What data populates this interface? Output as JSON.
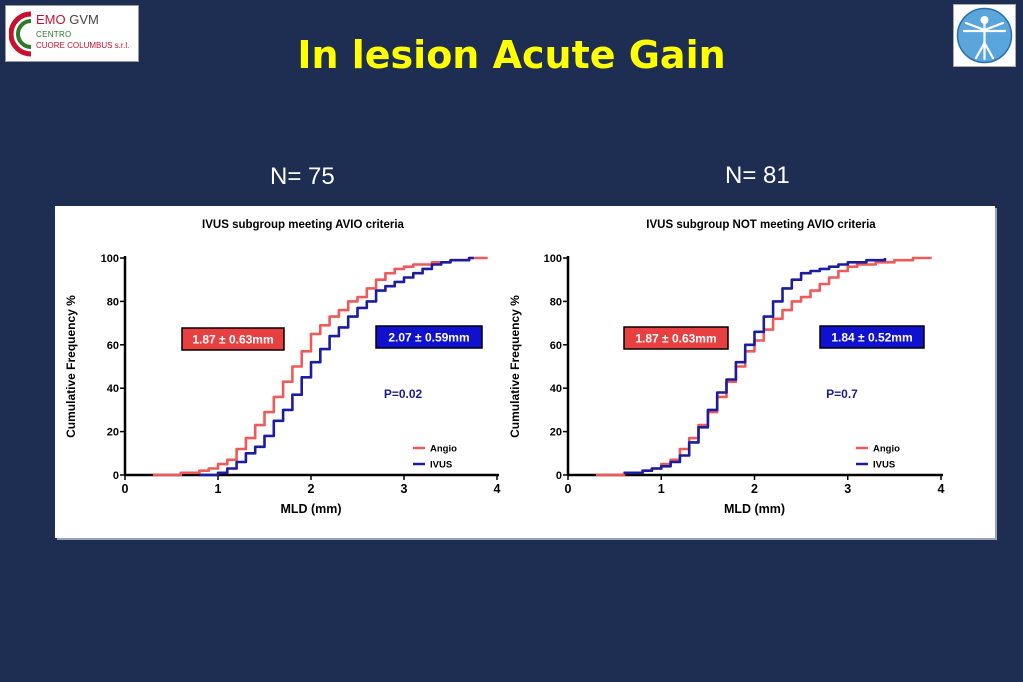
{
  "header": {
    "title": "In lesion Acute Gain",
    "logo_left": {
      "line1_a": "EMO",
      "line1_b": "GVM",
      "line2": "CENTRO",
      "line3": "CUORE COLUMBUS s.r.l."
    }
  },
  "groups": [
    {
      "n_label": "N= 75"
    },
    {
      "n_label": "N= 81"
    }
  ],
  "colors": {
    "background": "#1e2d52",
    "title": "#ffff00",
    "angio": "#ee5a5a",
    "ivus": "#1c1ca0",
    "angio_box": "#e84040",
    "ivus_box": "#1010d0",
    "pval": "#1c1c8c"
  },
  "chart_data": [
    {
      "type": "line",
      "title": "IVUS subgroup meeting AVIO criteria",
      "xlabel": "MLD (mm)",
      "ylabel": "Cumulative Frequency %",
      "xlim": [
        0,
        4
      ],
      "ylim": [
        0,
        100
      ],
      "xticks": [
        "0",
        "1",
        "2",
        "3",
        "4"
      ],
      "yticks": [
        "0",
        "20",
        "40",
        "60",
        "80",
        "100"
      ],
      "grid": false,
      "legend_position": "bottom-right",
      "angio_label": "1.87 ± 0.63mm",
      "ivus_label": "2.07 ± 0.59mm",
      "p_value": "P=0.02",
      "series": [
        {
          "name": "Angio",
          "x": [
            0.3,
            0.6,
            0.8,
            0.9,
            1.0,
            1.1,
            1.2,
            1.3,
            1.4,
            1.5,
            1.6,
            1.7,
            1.8,
            1.9,
            2.0,
            2.1,
            2.2,
            2.3,
            2.4,
            2.5,
            2.6,
            2.7,
            2.8,
            2.9,
            3.0,
            3.1,
            3.3,
            3.5,
            3.7,
            3.9
          ],
          "y": [
            0,
            1,
            2,
            3,
            5,
            7,
            12,
            17,
            23,
            29,
            36,
            43,
            50,
            57,
            65,
            69,
            73,
            76,
            80,
            82,
            86,
            90,
            93,
            95,
            96,
            97,
            98,
            99,
            100,
            100
          ]
        },
        {
          "name": "IVUS",
          "x": [
            0.8,
            1.0,
            1.1,
            1.2,
            1.3,
            1.4,
            1.5,
            1.6,
            1.7,
            1.8,
            1.9,
            2.0,
            2.1,
            2.2,
            2.3,
            2.4,
            2.5,
            2.6,
            2.7,
            2.8,
            2.9,
            3.0,
            3.1,
            3.2,
            3.3,
            3.4,
            3.5,
            3.6,
            3.7,
            3.75
          ],
          "y": [
            0,
            1,
            3,
            6,
            10,
            13,
            18,
            25,
            30,
            37,
            45,
            52,
            58,
            64,
            68,
            73,
            77,
            80,
            85,
            87,
            89,
            91,
            93,
            95,
            97,
            98,
            99,
            99,
            100,
            100
          ]
        }
      ]
    },
    {
      "type": "line",
      "title": "IVUS subgroup NOT meeting AVIO criteria",
      "xlabel": "MLD (mm)",
      "ylabel": "Cumulative Frequency %",
      "xlim": [
        0,
        4
      ],
      "ylim": [
        0,
        100
      ],
      "xticks": [
        "0",
        "1",
        "2",
        "3",
        "4"
      ],
      "yticks": [
        "0",
        "20",
        "40",
        "60",
        "80",
        "100"
      ],
      "grid": false,
      "legend_position": "bottom-right",
      "angio_label": "1.87 ± 0.63mm",
      "ivus_label": "1.84 ± 0.52mm",
      "p_value": "P=0.7",
      "series": [
        {
          "name": "Angio",
          "x": [
            0.3,
            0.6,
            0.8,
            0.9,
            1.0,
            1.1,
            1.2,
            1.3,
            1.4,
            1.5,
            1.6,
            1.7,
            1.8,
            1.9,
            2.0,
            2.1,
            2.2,
            2.3,
            2.4,
            2.5,
            2.6,
            2.7,
            2.8,
            2.9,
            3.0,
            3.1,
            3.3,
            3.5,
            3.7,
            3.9
          ],
          "y": [
            0,
            1,
            2,
            3,
            5,
            7,
            12,
            17,
            23,
            29,
            36,
            43,
            50,
            57,
            62,
            67,
            72,
            76,
            80,
            82,
            85,
            88,
            91,
            94,
            96,
            97,
            98,
            99,
            100,
            100
          ]
        },
        {
          "name": "IVUS",
          "x": [
            0.6,
            0.8,
            0.9,
            1.0,
            1.1,
            1.2,
            1.3,
            1.4,
            1.5,
            1.6,
            1.7,
            1.8,
            1.9,
            2.0,
            2.1,
            2.2,
            2.3,
            2.4,
            2.5,
            2.6,
            2.7,
            2.8,
            2.9,
            3.0,
            3.1,
            3.2,
            3.3,
            3.4
          ],
          "y": [
            1,
            2,
            3,
            4,
            6,
            9,
            15,
            22,
            30,
            38,
            44,
            52,
            60,
            66,
            73,
            80,
            86,
            90,
            93,
            94,
            95,
            96,
            97,
            98,
            98,
            99,
            99,
            100
          ]
        }
      ]
    }
  ]
}
